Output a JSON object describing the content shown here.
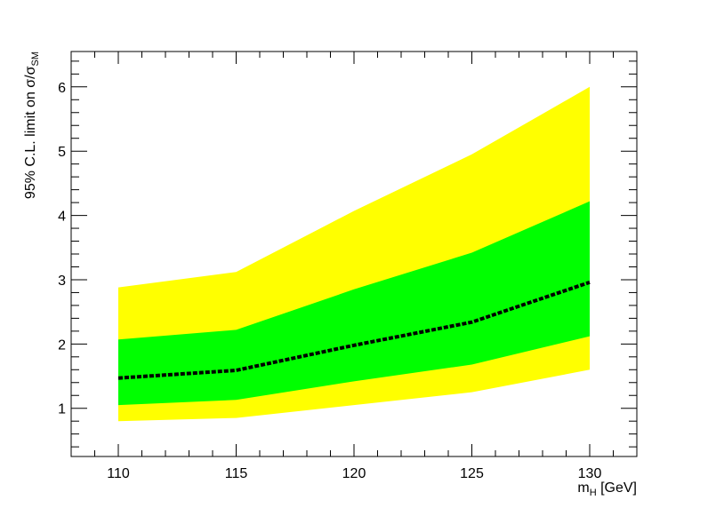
{
  "chart_data": {
    "type": "area",
    "x": [
      110,
      115,
      120,
      125,
      130
    ],
    "xlim": [
      108,
      132
    ],
    "ylim": [
      0.25,
      6.55
    ],
    "x_ticks": [
      "110",
      "115",
      "120",
      "125",
      "130"
    ],
    "y_ticks": [
      "1",
      "2",
      "3",
      "4",
      "5",
      "6"
    ],
    "xlabel": {
      "main": "m",
      "sub": "H",
      "suffix": " [GeV]"
    },
    "ylabel": {
      "main": "95% C.L. limit on σ/σ",
      "sub": "SM"
    },
    "bands": [
      {
        "lower": [
          0.8,
          0.85,
          1.05,
          1.25,
          1.6
        ],
        "upper": [
          2.88,
          3.12,
          4.07,
          4.95,
          6.0
        ],
        "color": "#ffff00"
      },
      {
        "lower": [
          1.05,
          1.13,
          1.42,
          1.68,
          2.12
        ],
        "upper": [
          2.07,
          2.22,
          2.85,
          3.42,
          4.22
        ],
        "color": "#00ff00"
      }
    ],
    "series": [
      {
        "values": [
          1.47,
          1.59,
          1.98,
          2.34,
          2.96
        ],
        "color": "#000000",
        "style": "dashed"
      }
    ],
    "grid": false,
    "legend": "none"
  }
}
